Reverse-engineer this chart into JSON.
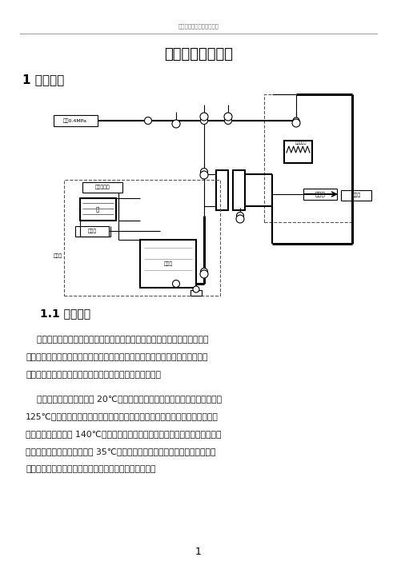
{
  "header_company": "河北宇泽环保科技有限公司",
  "main_title": "新型节能连消装置",
  "section1_title": "1 系统组成",
  "section11_title": "1.1 灭菌流程",
  "para1_lines": [
    "    新型连消装置概况：本装置充分利用蒸汽潜热，采用高温短时灭菌，经过新",
    "型预热冷却器做到了纯逆流换热。整套装置包括预热冷却器、恒温灭菌器、加热",
    "混合器三部分结合自控装置安全稳定的完成消毒灭菌过程。"
  ],
  "para2_lines": [
    "    工作流程为：配料罐中的 20℃的物料经离心泵打入预热冷却器，物料在预热",
    "125℃左右后进入加热混合器，将蒸汽吸入并压缩成高压饱和水，与预热后的物",
    "料瞬间混合并加热至 140℃左右的灭菌温度，再以与之相适应时间流过灭菌器，",
    "然后返回预热冷却器中冷却到 35℃，进入事先空罐灭菌的发酵罐或无菌物料储",
    "罐，最后将辅助配料罐中的少量清水泵入以清洗本装置。"
  ],
  "page_number": "1",
  "bg_color": "#ffffff",
  "text_color": "#1a1a1a",
  "gray_text": "#666666",
  "line_color": "#333333"
}
